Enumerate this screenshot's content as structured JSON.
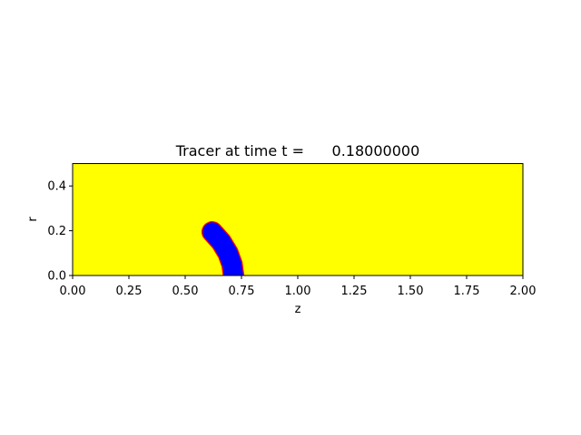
{
  "chart_data": {
    "type": "heatmap",
    "title": "Tracer at time t =      0.18000000",
    "xlabel": "z",
    "ylabel": "r",
    "xlim": [
      0.0,
      2.0
    ],
    "ylim": [
      0.0,
      0.5
    ],
    "x_ticks": [
      0.0,
      0.25,
      0.5,
      0.75,
      1.0,
      1.25,
      1.5,
      1.75,
      2.0
    ],
    "x_tick_labels": [
      "0.00",
      "0.25",
      "0.50",
      "0.75",
      "1.00",
      "1.25",
      "1.50",
      "1.75",
      "2.00"
    ],
    "y_ticks": [
      0.0,
      0.2,
      0.4
    ],
    "y_tick_labels": [
      "0.0",
      "0.2",
      "0.4"
    ],
    "grid": false,
    "colors": {
      "background": "#ffff00",
      "tracer": "#0000ff",
      "interface": "#ff0000"
    },
    "tracer_region": {
      "description": "curved jet",
      "centerline": [
        {
          "z": 0.715,
          "r": 0.0
        },
        {
          "z": 0.708,
          "r": 0.05
        },
        {
          "z": 0.69,
          "r": 0.1
        },
        {
          "z": 0.66,
          "r": 0.15
        },
        {
          "z": 0.62,
          "r": 0.195
        }
      ],
      "width_z": 0.085
    }
  }
}
